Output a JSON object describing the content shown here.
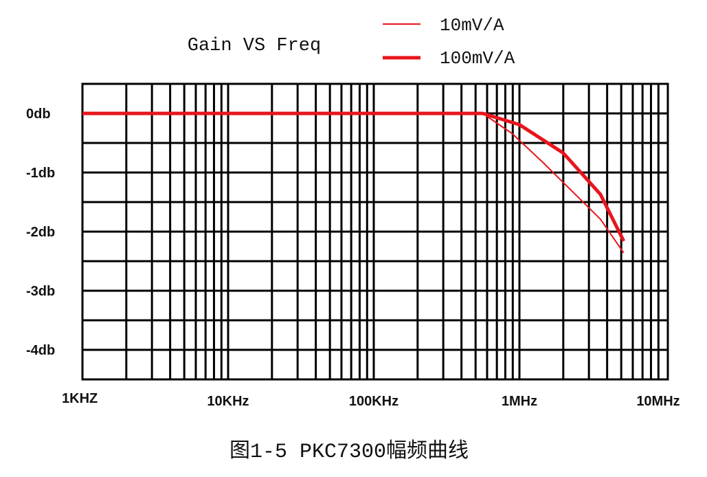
{
  "chart_data": {
    "type": "line",
    "title": "Gain VS Freq",
    "caption": "图1-5 PKC7300幅频曲线",
    "xscale": "log",
    "xlim": [
      1000,
      10000000
    ],
    "ylim": [
      0.5,
      -4.5
    ],
    "grid": true,
    "legend_placement": "top-right",
    "x_tick_labels": [
      {
        "value": 1000,
        "label": "1KHZ"
      },
      {
        "value": 10000,
        "label": "10KHz"
      },
      {
        "value": 100000,
        "label": "100KHz"
      },
      {
        "value": 1000000,
        "label": "1MHz"
      },
      {
        "value": 10000000,
        "label": "10MHz"
      }
    ],
    "y_tick_labels": [
      {
        "value": 0,
        "label": "0db"
      },
      {
        "value": -1,
        "label": "-1db"
      },
      {
        "value": -2,
        "label": "-2db"
      },
      {
        "value": -3,
        "label": "-3db"
      },
      {
        "value": -4,
        "label": "-4db"
      }
    ],
    "series": [
      {
        "name": "10mV/A",
        "color": "#e8141c",
        "style": "thin",
        "x": [
          1000,
          560000,
          890000,
          1450000,
          3600000,
          5200000
        ],
        "y": [
          0,
          0,
          -0.34,
          -0.83,
          -1.79,
          -2.36
        ]
      },
      {
        "name": "100mV/A",
        "color": "#e8141c",
        "style": "thick",
        "x": [
          1000,
          560000,
          1000000,
          2000000,
          3600000,
          5200000
        ],
        "y": [
          0,
          0,
          -0.19,
          -0.67,
          -1.37,
          -2.16
        ]
      }
    ]
  }
}
